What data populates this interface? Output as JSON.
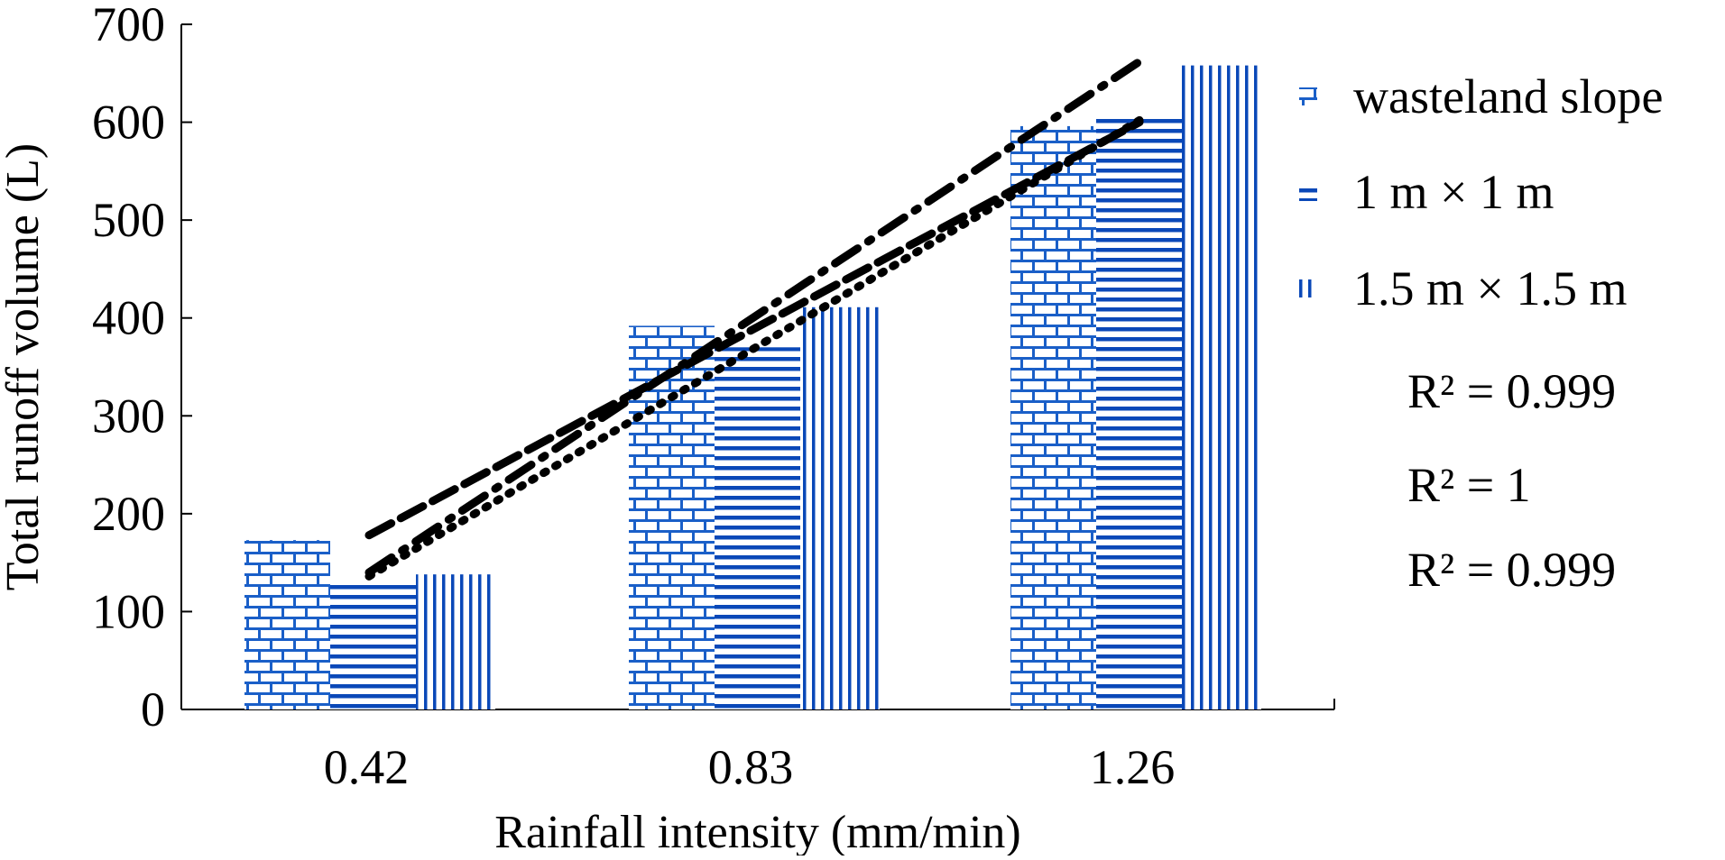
{
  "chart_data": {
    "type": "bar",
    "xlabel": "Rainfall intensity (mm/min)",
    "ylabel": "Total runoff volume (L)",
    "categories": [
      "0.42",
      "0.83",
      "1.26"
    ],
    "ylim": [
      0,
      700
    ],
    "yticks": [
      0,
      100,
      200,
      300,
      400,
      500,
      600,
      700
    ],
    "grid": false,
    "legend_placement": "right",
    "bar_color": "#1a5fc8",
    "series": [
      {
        "name": "wasteland slope",
        "pattern": "brick",
        "values": [
          173,
          392,
          596
        ]
      },
      {
        "name": "1 m × 1 m",
        "pattern": "horizontal-lines",
        "values": [
          133,
          370,
          605
        ]
      },
      {
        "name": "1.5 m × 1.5 m",
        "pattern": "vertical-lines",
        "values": [
          138,
          411,
          658
        ]
      }
    ],
    "trendlines": [
      {
        "style": "dashed",
        "start": 178,
        "end": 600
      },
      {
        "style": "dash-dot",
        "start": 140,
        "end": 662
      },
      {
        "style": "dotted",
        "start": 136,
        "end": 602
      }
    ],
    "annotations": [
      "R² = 0.999",
      "R² = 1",
      "R² = 0.999"
    ]
  }
}
